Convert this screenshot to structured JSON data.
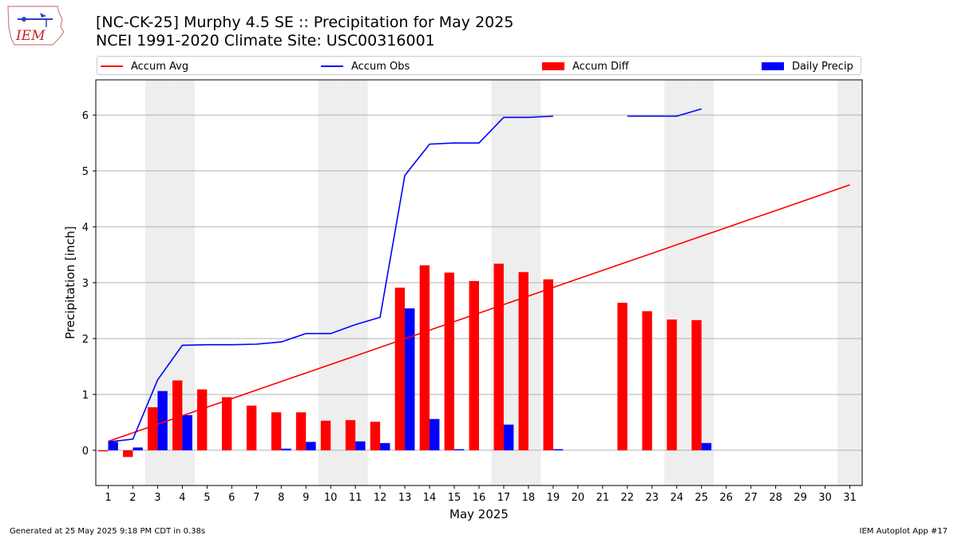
{
  "logo_text": "IEM",
  "title_line1": "[NC-CK-25] Murphy 4.5 SE :: Precipitation for May 2025",
  "title_line2": "NCEI 1991-2020 Climate Site: USC00316001",
  "legend": [
    {
      "label": "Accum Avg",
      "kind": "line",
      "color": "#ff0000"
    },
    {
      "label": "Accum Obs",
      "kind": "line",
      "color": "#0000ff"
    },
    {
      "label": "Accum Diff",
      "kind": "patch",
      "color": "#ff0000"
    },
    {
      "label": "Daily Precip",
      "kind": "patch",
      "color": "#0000ff"
    }
  ],
  "footer_left": "Generated at 25 May 2025 9:18 PM CDT in 0.38s",
  "footer_right": "IEM Autoplot App #17",
  "colors": {
    "avg": "#ff0000",
    "obs": "#0000ff",
    "weekend": "#eeeeee",
    "grid": "#b0b0b0"
  },
  "chart_data": {
    "type": "bar",
    "xlabel": "May 2025",
    "ylabel": "Precipitation [inch]",
    "xlim": [
      0.5,
      31.5
    ],
    "ylim": [
      -0.63,
      6.63
    ],
    "yticks": [
      0,
      1,
      2,
      3,
      4,
      5,
      6
    ],
    "grid": "horizontal",
    "legend_position": "top",
    "days": [
      1,
      2,
      3,
      4,
      5,
      6,
      7,
      8,
      9,
      10,
      11,
      12,
      13,
      14,
      15,
      16,
      17,
      18,
      19,
      20,
      21,
      22,
      23,
      24,
      25,
      26,
      27,
      28,
      29,
      30,
      31
    ],
    "weekend_days": [
      3,
      4,
      10,
      11,
      17,
      18,
      24,
      25,
      31
    ],
    "accum_avg_start": 0.16,
    "accum_avg_end": 4.75,
    "accum_obs": [
      0.15,
      0.2,
      1.26,
      1.88,
      1.89,
      1.89,
      1.9,
      1.94,
      2.09,
      2.09,
      2.25,
      2.38,
      4.92,
      5.48,
      5.5,
      5.5,
      5.96,
      5.96,
      5.98,
      null,
      null,
      5.98,
      5.98,
      5.98,
      6.11,
      null,
      null,
      null,
      null,
      null,
      null
    ],
    "accum_diff": [
      -0.02,
      -0.12,
      0.77,
      1.25,
      1.09,
      0.95,
      0.8,
      0.68,
      0.68,
      0.53,
      0.54,
      0.51,
      2.91,
      3.31,
      3.18,
      3.03,
      3.34,
      3.19,
      3.06,
      null,
      null,
      2.64,
      2.49,
      2.34,
      2.33,
      null,
      null,
      null,
      null,
      null,
      null
    ],
    "daily_precip": [
      0.15,
      0.05,
      1.06,
      0.63,
      0.0,
      0.0,
      0.0,
      0.03,
      0.15,
      0.0,
      0.16,
      0.13,
      2.54,
      0.56,
      0.02,
      0.0,
      0.46,
      0.0,
      0.02,
      null,
      null,
      0.0,
      0.0,
      0.0,
      0.13,
      null,
      null,
      null,
      null,
      null,
      null
    ]
  }
}
